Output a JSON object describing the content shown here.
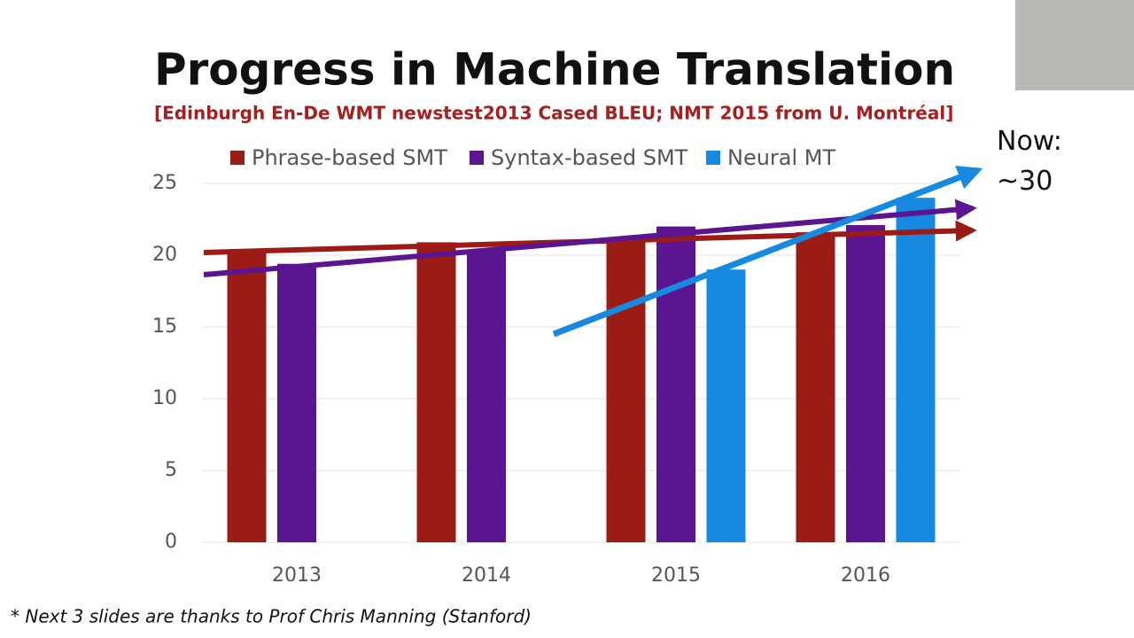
{
  "chart_data": {
    "type": "bar",
    "title": "Progress in Machine Translation",
    "subtitle": "[Edinburgh En-De WMT newstest2013 Cased BLEU; NMT 2015 from U. Montréal]",
    "annotation": "Now:\n~30",
    "footnote": "* Next 3 slides are thanks to Prof Chris Manning (Stanford)",
    "categories": [
      "2013",
      "2014",
      "2015",
      "2016"
    ],
    "series": [
      {
        "name": "Phrase-based SMT",
        "color": "#9b1c14",
        "values": [
          20.3,
          20.9,
          20.9,
          21.6
        ]
      },
      {
        "name": "Syntax-based SMT",
        "color": "#5b1590",
        "values": [
          19.4,
          20.4,
          22.0,
          22.1
        ]
      },
      {
        "name": "Neural MT",
        "color": "#1689e0",
        "values": [
          null,
          null,
          19.0,
          24.0
        ]
      }
    ],
    "ylim": [
      0,
      25
    ],
    "yticks": [
      0,
      5,
      10,
      15,
      20,
      25
    ],
    "grid": true
  }
}
